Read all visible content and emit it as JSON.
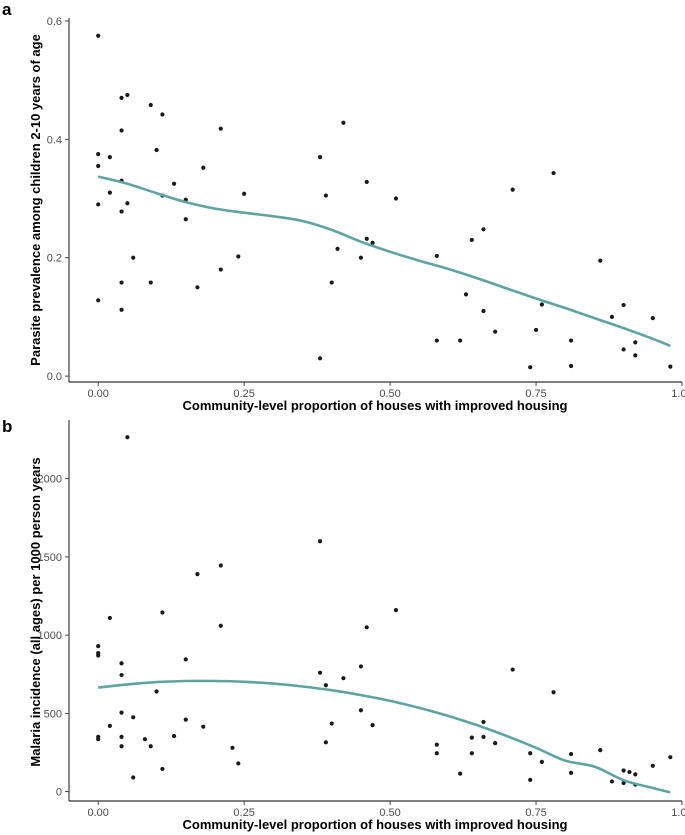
{
  "chart_data": [
    {
      "type": "scatter",
      "panel_label": "a",
      "xlabel": "Community-level proportion of houses with improved housing",
      "ylabel": "Parasite prevalence among children 2-10 years of age",
      "xlim": [
        -0.05,
        1.0
      ],
      "ylim": [
        -0.01,
        0.605
      ],
      "x_ticks": [
        0.0,
        0.25,
        0.5,
        0.75,
        1.0
      ],
      "x_tick_labels": [
        "0.00",
        "0.25",
        "0.50",
        "0.75",
        "1.00"
      ],
      "y_ticks": [
        0.0,
        0.2,
        0.4,
        0.6
      ],
      "y_tick_labels": [
        "0.0",
        "0.2",
        "0.4",
        "0.6"
      ],
      "grid": false,
      "point_color": "#1a1a1a",
      "line_color": "#5fa3a3",
      "points": [
        [
          0.0,
          0.575
        ],
        [
          0.0,
          0.375
        ],
        [
          0.0,
          0.355
        ],
        [
          0.0,
          0.29
        ],
        [
          0.0,
          0.128
        ],
        [
          0.02,
          0.37
        ],
        [
          0.02,
          0.31
        ],
        [
          0.04,
          0.47
        ],
        [
          0.04,
          0.415
        ],
        [
          0.04,
          0.33
        ],
        [
          0.04,
          0.278
        ],
        [
          0.04,
          0.158
        ],
        [
          0.04,
          0.112
        ],
        [
          0.05,
          0.475
        ],
        [
          0.05,
          0.292
        ],
        [
          0.06,
          0.2
        ],
        [
          0.09,
          0.458
        ],
        [
          0.09,
          0.158
        ],
        [
          0.1,
          0.382
        ],
        [
          0.11,
          0.442
        ],
        [
          0.11,
          0.305
        ],
        [
          0.13,
          0.325
        ],
        [
          0.15,
          0.298
        ],
        [
          0.15,
          0.265
        ],
        [
          0.17,
          0.15
        ],
        [
          0.18,
          0.352
        ],
        [
          0.21,
          0.418
        ],
        [
          0.21,
          0.18
        ],
        [
          0.24,
          0.202
        ],
        [
          0.25,
          0.308
        ],
        [
          0.38,
          0.37
        ],
        [
          0.38,
          0.03
        ],
        [
          0.39,
          0.305
        ],
        [
          0.4,
          0.158
        ],
        [
          0.41,
          0.215
        ],
        [
          0.42,
          0.428
        ],
        [
          0.45,
          0.2
        ],
        [
          0.46,
          0.328
        ],
        [
          0.46,
          0.232
        ],
        [
          0.47,
          0.225
        ],
        [
          0.51,
          0.3
        ],
        [
          0.58,
          0.203
        ],
        [
          0.58,
          0.06
        ],
        [
          0.62,
          0.06
        ],
        [
          0.63,
          0.138
        ],
        [
          0.64,
          0.23
        ],
        [
          0.66,
          0.248
        ],
        [
          0.66,
          0.11
        ],
        [
          0.68,
          0.075
        ],
        [
          0.71,
          0.315
        ],
        [
          0.74,
          0.015
        ],
        [
          0.75,
          0.078
        ],
        [
          0.76,
          0.121
        ],
        [
          0.78,
          0.343
        ],
        [
          0.81,
          0.06
        ],
        [
          0.81,
          0.017
        ],
        [
          0.86,
          0.195
        ],
        [
          0.88,
          0.1
        ],
        [
          0.9,
          0.12
        ],
        [
          0.9,
          0.045
        ],
        [
          0.92,
          0.057
        ],
        [
          0.92,
          0.035
        ],
        [
          0.95,
          0.098
        ],
        [
          0.98,
          0.016
        ]
      ],
      "smooth_line": [
        [
          0.0,
          0.337
        ],
        [
          0.05,
          0.325
        ],
        [
          0.1,
          0.309
        ],
        [
          0.15,
          0.294
        ],
        [
          0.2,
          0.283
        ],
        [
          0.25,
          0.276
        ],
        [
          0.3,
          0.27
        ],
        [
          0.35,
          0.262
        ],
        [
          0.4,
          0.247
        ],
        [
          0.45,
          0.227
        ],
        [
          0.5,
          0.21
        ],
        [
          0.55,
          0.195
        ],
        [
          0.6,
          0.181
        ],
        [
          0.65,
          0.165
        ],
        [
          0.7,
          0.148
        ],
        [
          0.75,
          0.131
        ],
        [
          0.8,
          0.115
        ],
        [
          0.85,
          0.098
        ],
        [
          0.9,
          0.081
        ],
        [
          0.95,
          0.063
        ],
        [
          0.98,
          0.051
        ]
      ]
    },
    {
      "type": "scatter",
      "panel_label": "b",
      "xlabel": "Community-level proportion of houses with improved housing",
      "ylabel": "Malaria incidence (all ages) per 1000 person years",
      "xlim": [
        -0.05,
        1.0
      ],
      "ylim": [
        -60,
        2375
      ],
      "x_ticks": [
        0.0,
        0.25,
        0.5,
        0.75,
        1.0
      ],
      "x_tick_labels": [
        "0.00",
        "0.25",
        "0.50",
        "0.75",
        "1.00"
      ],
      "y_ticks": [
        0,
        500,
        1000,
        1500,
        2000
      ],
      "y_tick_labels": [
        "0",
        "500",
        "1000",
        "1500",
        "2000"
      ],
      "grid": false,
      "point_color": "#1a1a1a",
      "line_color": "#5fa3a3",
      "points": [
        [
          0.0,
          930
        ],
        [
          0.0,
          885
        ],
        [
          0.0,
          870
        ],
        [
          0.0,
          350
        ],
        [
          0.0,
          335
        ],
        [
          0.02,
          1110
        ],
        [
          0.02,
          420
        ],
        [
          0.04,
          820
        ],
        [
          0.04,
          820
        ],
        [
          0.04,
          745
        ],
        [
          0.04,
          505
        ],
        [
          0.04,
          350
        ],
        [
          0.04,
          290
        ],
        [
          0.05,
          2265
        ],
        [
          0.06,
          90
        ],
        [
          0.06,
          475
        ],
        [
          0.08,
          335
        ],
        [
          0.09,
          290
        ],
        [
          0.1,
          640
        ],
        [
          0.11,
          1145
        ],
        [
          0.11,
          145
        ],
        [
          0.13,
          355
        ],
        [
          0.15,
          845
        ],
        [
          0.15,
          460
        ],
        [
          0.17,
          1390
        ],
        [
          0.18,
          415
        ],
        [
          0.21,
          1445
        ],
        [
          0.21,
          1060
        ],
        [
          0.23,
          280
        ],
        [
          0.24,
          180
        ],
        [
          0.38,
          1600
        ],
        [
          0.38,
          760
        ],
        [
          0.39,
          680
        ],
        [
          0.39,
          315
        ],
        [
          0.4,
          435
        ],
        [
          0.42,
          725
        ],
        [
          0.45,
          800
        ],
        [
          0.45,
          520
        ],
        [
          0.46,
          1050
        ],
        [
          0.47,
          425
        ],
        [
          0.51,
          1160
        ],
        [
          0.58,
          245
        ],
        [
          0.58,
          300
        ],
        [
          0.62,
          115
        ],
        [
          0.64,
          245
        ],
        [
          0.64,
          345
        ],
        [
          0.66,
          445
        ],
        [
          0.66,
          350
        ],
        [
          0.68,
          310
        ],
        [
          0.71,
          780
        ],
        [
          0.74,
          75
        ],
        [
          0.74,
          245
        ],
        [
          0.76,
          190
        ],
        [
          0.78,
          635
        ],
        [
          0.81,
          240
        ],
        [
          0.81,
          120
        ],
        [
          0.86,
          265
        ],
        [
          0.88,
          65
        ],
        [
          0.9,
          135
        ],
        [
          0.9,
          55
        ],
        [
          0.91,
          125
        ],
        [
          0.92,
          110
        ],
        [
          0.92,
          45
        ],
        [
          0.95,
          165
        ],
        [
          0.98,
          220
        ]
      ],
      "smooth_line": [
        [
          0.0,
          665
        ],
        [
          0.05,
          685
        ],
        [
          0.1,
          700
        ],
        [
          0.15,
          707
        ],
        [
          0.2,
          707
        ],
        [
          0.25,
          702
        ],
        [
          0.3,
          690
        ],
        [
          0.35,
          672
        ],
        [
          0.4,
          648
        ],
        [
          0.45,
          617
        ],
        [
          0.5,
          580
        ],
        [
          0.55,
          535
        ],
        [
          0.6,
          483
        ],
        [
          0.65,
          423
        ],
        [
          0.7,
          355
        ],
        [
          0.75,
          280
        ],
        [
          0.8,
          198
        ],
        [
          0.85,
          160
        ],
        [
          0.9,
          73
        ],
        [
          0.95,
          23
        ],
        [
          0.98,
          -5
        ]
      ]
    }
  ]
}
